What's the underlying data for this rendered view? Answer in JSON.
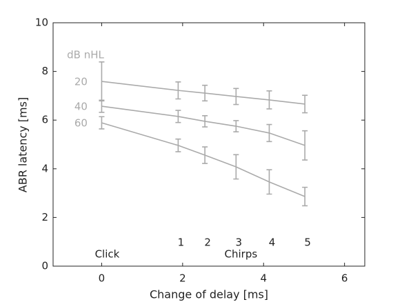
{
  "chart_data": {
    "type": "line",
    "xlabel": "Change of delay [ms]",
    "ylabel": "ABR latency [ms]",
    "legend_title": "dB nHL",
    "x": [
      0,
      1.89,
      2.55,
      3.32,
      4.14,
      5.02
    ],
    "series": [
      {
        "name": "20",
        "color": "#aaaaaa",
        "values": [
          7.59,
          7.22,
          7.11,
          6.97,
          6.83,
          6.66
        ],
        "errors": [
          0.8,
          0.35,
          0.32,
          0.33,
          0.37,
          0.36
        ]
      },
      {
        "name": "40",
        "color": "#aaaaaa",
        "values": [
          6.57,
          6.15,
          5.95,
          5.75,
          5.47,
          4.96
        ],
        "errors": [
          0.25,
          0.25,
          0.23,
          0.23,
          0.35,
          0.6
        ]
      },
      {
        "name": "60",
        "color": "#aaaaaa",
        "values": [
          5.89,
          4.96,
          4.56,
          4.08,
          3.46,
          2.86
        ],
        "errors": [
          0.25,
          0.26,
          0.34,
          0.5,
          0.5,
          0.38
        ]
      }
    ],
    "annotations": {
      "click": "Click",
      "chirps": "Chirps",
      "chirp_numbers": [
        "1",
        "2",
        "3",
        "4",
        "5"
      ]
    },
    "xlim": [
      -1.2,
      6.5
    ],
    "ylim": [
      0,
      10
    ],
    "xticks": [
      0,
      2,
      4,
      6
    ],
    "yticks": [
      0,
      2,
      4,
      6,
      8,
      10
    ]
  }
}
